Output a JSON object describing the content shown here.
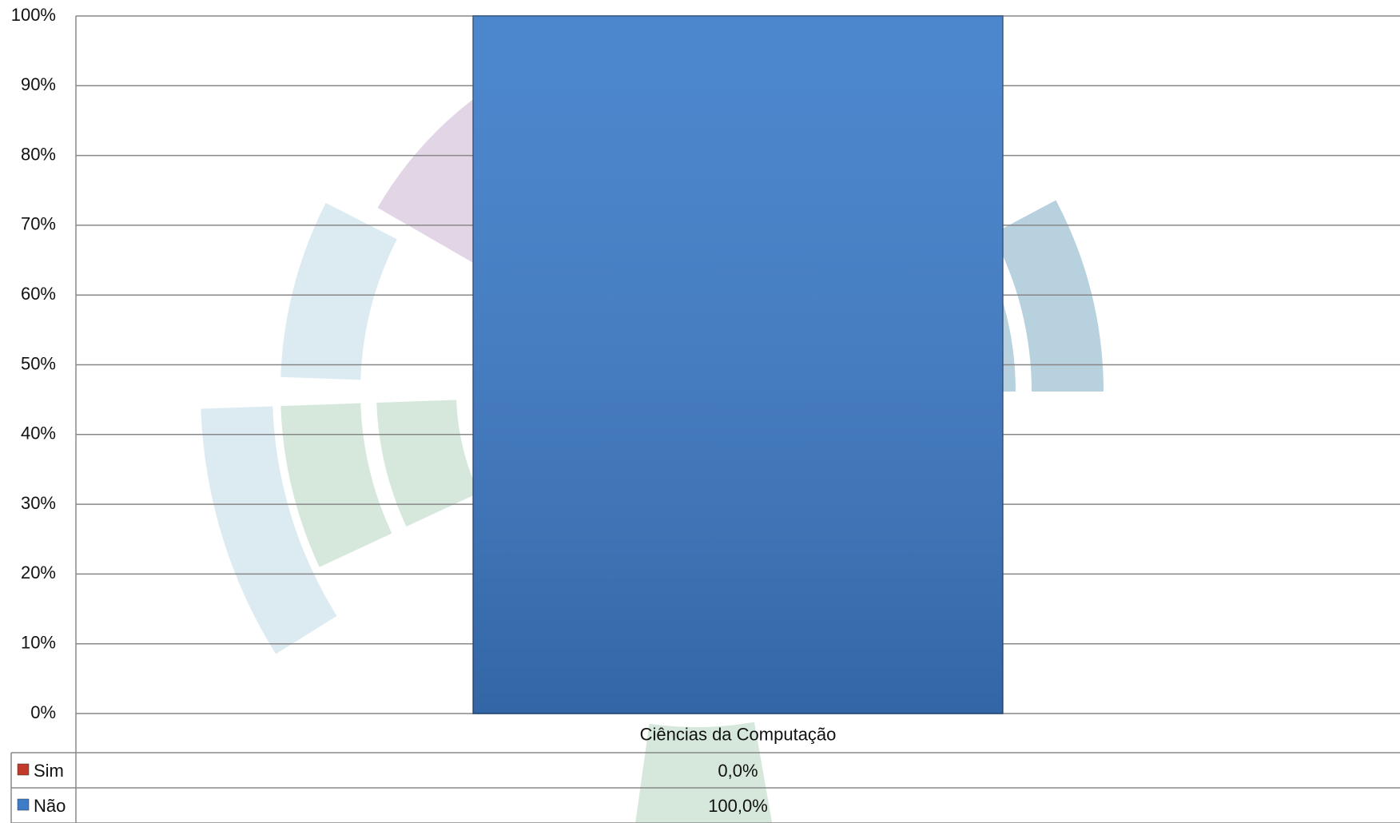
{
  "chart_data": {
    "type": "bar",
    "stacked": true,
    "categories": [
      "Ciências da Computação"
    ],
    "series": [
      {
        "name": "Sim",
        "color": "#c0392b",
        "values": [
          0
        ],
        "value_labels": [
          "0,0%"
        ]
      },
      {
        "name": "Não",
        "color": "#3d7cc9",
        "values": [
          100
        ],
        "value_labels": [
          "100,0%"
        ]
      }
    ],
    "ylim": [
      0,
      100
    ],
    "yticks": [
      {
        "value": 0,
        "label": "0%"
      },
      {
        "value": 10,
        "label": "10%"
      },
      {
        "value": 20,
        "label": "20%"
      },
      {
        "value": 30,
        "label": "30%"
      },
      {
        "value": 40,
        "label": "40%"
      },
      {
        "value": 50,
        "label": "50%"
      },
      {
        "value": 60,
        "label": "60%"
      },
      {
        "value": 70,
        "label": "70%"
      },
      {
        "value": 80,
        "label": "80%"
      },
      {
        "value": 90,
        "label": "90%"
      },
      {
        "value": 100,
        "label": "100%"
      }
    ],
    "grid": true,
    "legend": "table"
  }
}
